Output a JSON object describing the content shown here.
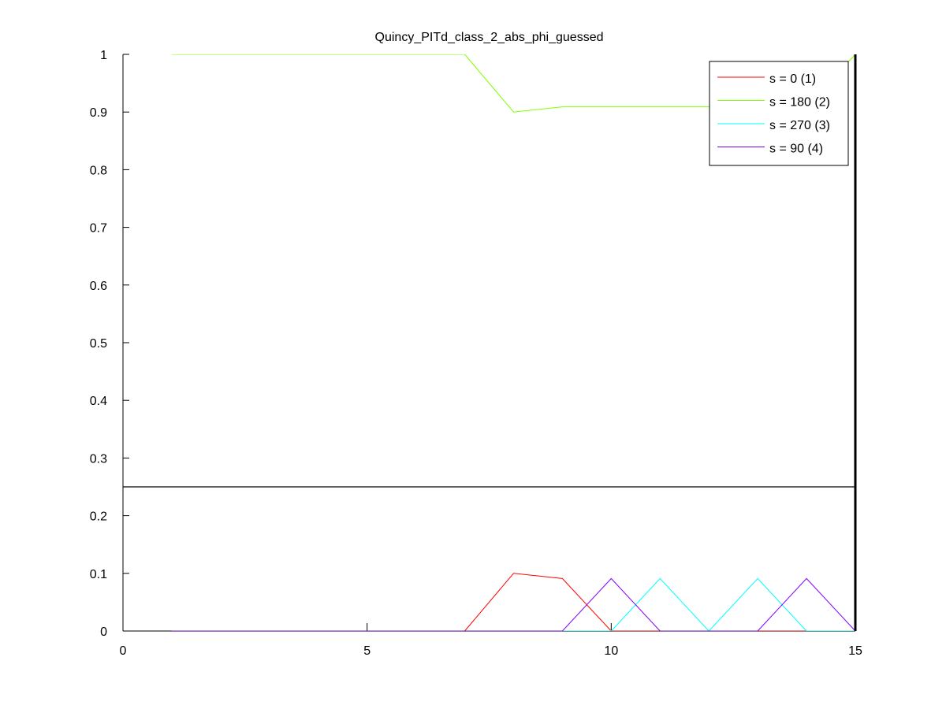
{
  "chart_data": {
    "type": "line",
    "title": "Quincy_PITd_class_2_abs_phi_guessed",
    "xlabel": "",
    "ylabel": "",
    "xlim": [
      0,
      15
    ],
    "ylim": [
      0,
      1
    ],
    "xticks": [
      0,
      5,
      10,
      15
    ],
    "yticks": [
      0,
      0.1,
      0.2,
      0.3,
      0.4,
      0.5,
      0.6,
      0.7,
      0.8,
      0.9,
      1
    ],
    "grid": false,
    "legend_position": "top-right",
    "reference_lines": {
      "horizontal_y": 0.25,
      "vertical_x": 15
    },
    "series": [
      {
        "name": "s = 0 (1)",
        "color": "#ff0000",
        "x": [
          1,
          2,
          3,
          4,
          5,
          6,
          7,
          8,
          9,
          10,
          11,
          12,
          13,
          14,
          15
        ],
        "y": [
          0,
          0,
          0,
          0,
          0,
          0,
          0,
          0.1,
          0.091,
          0,
          0,
          0,
          0,
          0,
          0
        ]
      },
      {
        "name": "s = 180 (2)",
        "color": "#80ff00",
        "x": [
          1,
          2,
          3,
          4,
          5,
          6,
          7,
          8,
          9,
          10,
          11,
          12,
          13,
          14,
          15
        ],
        "y": [
          1,
          1,
          1,
          1,
          1,
          1,
          1,
          0.9,
          0.909,
          0.909,
          0.909,
          0.909,
          0.909,
          0.909,
          1
        ]
      },
      {
        "name": "s = 270 (3)",
        "color": "#00ffff",
        "x": [
          1,
          2,
          3,
          4,
          5,
          6,
          7,
          8,
          9,
          10,
          11,
          12,
          13,
          14,
          15
        ],
        "y": [
          0,
          0,
          0,
          0,
          0,
          0,
          0,
          0,
          0,
          0,
          0.091,
          0,
          0.091,
          0,
          0
        ]
      },
      {
        "name": "s = 90 (4)",
        "color": "#8000ff",
        "x": [
          1,
          2,
          3,
          4,
          5,
          6,
          7,
          8,
          9,
          10,
          11,
          12,
          13,
          14,
          15
        ],
        "y": [
          0,
          0,
          0,
          0,
          0,
          0,
          0,
          0,
          0,
          0.091,
          0,
          0,
          0,
          0.091,
          0
        ]
      }
    ]
  }
}
